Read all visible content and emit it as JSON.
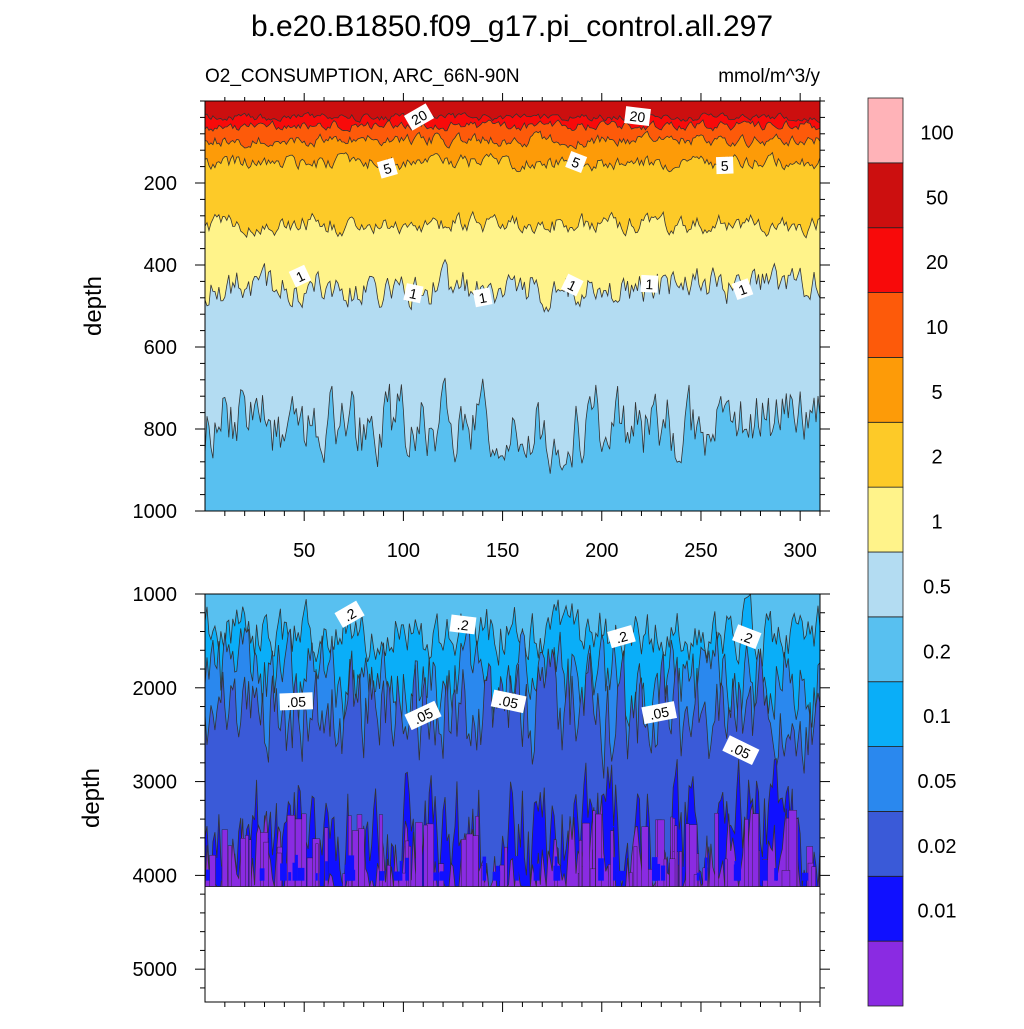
{
  "chart_data": {
    "type": "contour",
    "title": "b.e20.B1850.f09_g17.pi_control.all.297",
    "variable_label": "O2_CONSUMPTION, ARC_66N-90N",
    "units_label": "mmol/m^3/y",
    "ylabel": "depth",
    "colorbar": {
      "levels": [
        "0.01",
        "0.02",
        "0.05",
        "0.1",
        "0.2",
        "0.5",
        "1",
        "2",
        "5",
        "10",
        "20",
        "50",
        "100"
      ],
      "colors": [
        "#8a2be2",
        "#1010ff",
        "#3a5ad8",
        "#2a88ee",
        "#0aaef8",
        "#58c0f0",
        "#b3dcf2",
        "#fff38a",
        "#fdca28",
        "#fd9b08",
        "#fd5a0a",
        "#f80a0a",
        "#cc0f0f",
        "#ffb3b8"
      ]
    },
    "panels": [
      {
        "name": "upper",
        "xlim": [
          0,
          310
        ],
        "ylim": [
          1000,
          0
        ],
        "xticks": [
          50,
          100,
          150,
          200,
          250,
          300
        ],
        "xtick_labels": [
          "50",
          "100",
          "150",
          "200",
          "250",
          "300"
        ],
        "yticks": [
          200,
          400,
          600,
          800,
          1000
        ],
        "ytick_labels": [
          "200",
          "400",
          "600",
          "800",
          "1000"
        ],
        "contour_boundaries_depth": [
          {
            "upper_level": "50",
            "depth": 40
          },
          {
            "upper_level": "20",
            "depth": 60
          },
          {
            "upper_level": "10",
            "depth": 95
          },
          {
            "upper_level": "5",
            "depth": 150
          },
          {
            "upper_level": "2",
            "depth": 300
          },
          {
            "upper_level": "1",
            "depth": 455
          },
          {
            "upper_level": "0.5",
            "depth": 790
          }
        ],
        "contour_labels": [
          {
            "text": "20",
            "x": 108,
            "depth": 40
          },
          {
            "text": "20",
            "x": 218,
            "depth": 38
          },
          {
            "text": "5",
            "x": 92,
            "depth": 165
          },
          {
            "text": "5",
            "x": 187,
            "depth": 150
          },
          {
            "text": "5",
            "x": 262,
            "depth": 158
          },
          {
            "text": "1",
            "x": 48,
            "depth": 428
          },
          {
            "text": "1",
            "x": 105,
            "depth": 470
          },
          {
            "text": "1",
            "x": 140,
            "depth": 480
          },
          {
            "text": "1",
            "x": 185,
            "depth": 450
          },
          {
            "text": "1",
            "x": 224,
            "depth": 447
          },
          {
            "text": "1",
            "x": 271,
            "depth": 460
          }
        ]
      },
      {
        "name": "lower",
        "xlim": [
          0,
          310
        ],
        "ylim": [
          5350,
          1000
        ],
        "xticks": [
          50,
          100,
          150,
          200,
          250,
          300
        ],
        "yticks": [
          1000,
          2000,
          3000,
          4000,
          5000
        ],
        "ytick_labels": [
          "1000",
          "2000",
          "3000",
          "4000",
          "5000"
        ],
        "data_bottom_depth": 4120,
        "contour_boundaries_depth": [
          {
            "upper_level": "0.2",
            "depth": 1400
          },
          {
            "upper_level": "0.1",
            "depth": 1900
          },
          {
            "upper_level": "0.05",
            "depth": 2250
          },
          {
            "upper_level": "0.02",
            "depth": 3650
          },
          {
            "upper_level": "0.01",
            "depth": 3950
          }
        ],
        "contour_labels": [
          {
            "text": ".2",
            "x": 73,
            "depth": 1220
          },
          {
            "text": ".2",
            "x": 130,
            "depth": 1330
          },
          {
            "text": ".2",
            "x": 210,
            "depth": 1460
          },
          {
            "text": ".2",
            "x": 273,
            "depth": 1460
          },
          {
            "text": ".05",
            "x": 46,
            "depth": 2150
          },
          {
            "text": ".05",
            "x": 110,
            "depth": 2300
          },
          {
            "text": ".05",
            "x": 153,
            "depth": 2150
          },
          {
            "text": ".05",
            "x": 229,
            "depth": 2270
          },
          {
            "text": ".05",
            "x": 270,
            "depth": 2670
          }
        ]
      }
    ]
  }
}
